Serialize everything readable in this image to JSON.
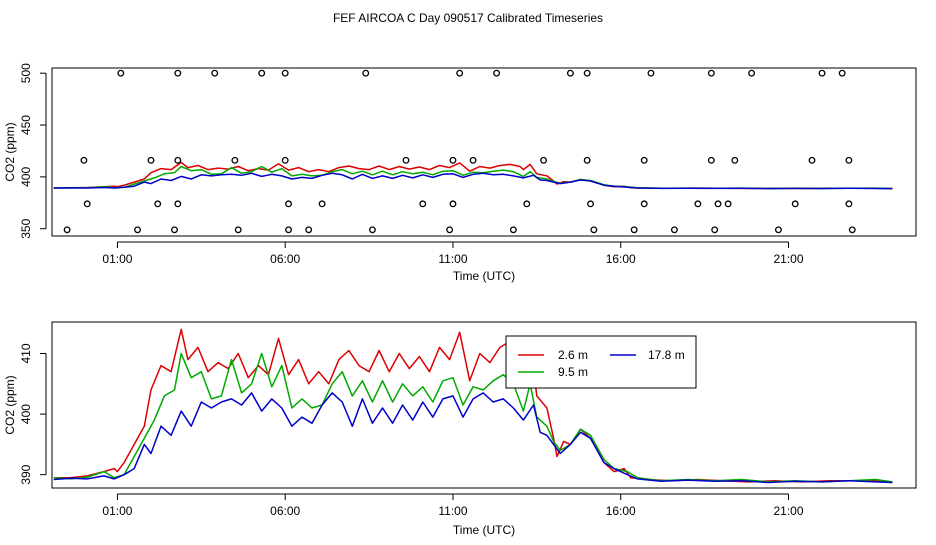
{
  "title": "FEF AIRCOA C  Day 090517  Calibrated Timeseries",
  "colors": {
    "h2_6": "#dd0000",
    "h9_5": "#00aa00",
    "h17_8": "#0000cc",
    "axis": "#000000"
  },
  "chart_data": [
    {
      "id": "top",
      "type": "line",
      "xlabel": "Time (UTC)",
      "ylabel": "CO2 (ppm)",
      "xlim": [
        -0.95,
        24.8
      ],
      "ylim": [
        343,
        505
      ],
      "xticks": [
        1,
        6,
        11,
        16,
        21
      ],
      "xtick_labels": [
        "01:00",
        "06:00",
        "11:00",
        "16:00",
        "21:00"
      ],
      "yticks": [
        350,
        400,
        450,
        500
      ],
      "ytick_labels": [
        "350",
        "400",
        "450",
        "500"
      ],
      "scatter_points": [
        [
          1.1,
          500
        ],
        [
          2.8,
          500
        ],
        [
          3.9,
          500
        ],
        [
          5.3,
          500
        ],
        [
          6.0,
          500
        ],
        [
          8.4,
          500
        ],
        [
          11.2,
          500
        ],
        [
          12.3,
          500
        ],
        [
          14.5,
          500
        ],
        [
          15.0,
          500
        ],
        [
          16.9,
          500
        ],
        [
          18.7,
          500
        ],
        [
          19.9,
          500
        ],
        [
          22.0,
          500
        ],
        [
          22.6,
          500
        ],
        [
          0.0,
          416
        ],
        [
          2.0,
          416
        ],
        [
          2.8,
          416
        ],
        [
          4.5,
          416
        ],
        [
          6.0,
          416
        ],
        [
          9.6,
          416
        ],
        [
          11.0,
          416
        ],
        [
          11.6,
          416
        ],
        [
          13.7,
          416
        ],
        [
          15.0,
          416
        ],
        [
          16.7,
          416
        ],
        [
          18.7,
          416
        ],
        [
          19.4,
          416
        ],
        [
          21.7,
          416
        ],
        [
          22.8,
          416
        ],
        [
          0.1,
          374
        ],
        [
          2.2,
          374
        ],
        [
          2.8,
          374
        ],
        [
          6.1,
          374
        ],
        [
          7.1,
          374
        ],
        [
          10.1,
          374
        ],
        [
          11.0,
          374
        ],
        [
          13.2,
          374
        ],
        [
          15.1,
          374
        ],
        [
          16.7,
          374
        ],
        [
          18.3,
          374
        ],
        [
          18.9,
          374
        ],
        [
          19.2,
          374
        ],
        [
          21.2,
          374
        ],
        [
          22.8,
          374
        ],
        [
          -0.5,
          349
        ],
        [
          1.6,
          349
        ],
        [
          2.7,
          349
        ],
        [
          4.6,
          349
        ],
        [
          6.1,
          349
        ],
        [
          6.7,
          349
        ],
        [
          8.6,
          349
        ],
        [
          10.9,
          349
        ],
        [
          12.8,
          349
        ],
        [
          15.2,
          349
        ],
        [
          16.4,
          349
        ],
        [
          17.6,
          349
        ],
        [
          18.8,
          349
        ],
        [
          20.7,
          349
        ],
        [
          22.9,
          349
        ]
      ]
    },
    {
      "id": "bottom",
      "type": "line",
      "xlabel": "Time (UTC)",
      "ylabel": "CO2 (ppm)",
      "xlim": [
        -0.95,
        24.8
      ],
      "ylim": [
        387.8,
        415.2
      ],
      "xticks": [
        1,
        6,
        11,
        16,
        21
      ],
      "xtick_labels": [
        "01:00",
        "06:00",
        "11:00",
        "16:00",
        "21:00"
      ],
      "yticks": [
        390,
        400,
        410
      ],
      "ytick_labels": [
        "390",
        "400",
        "410"
      ],
      "legend": {
        "position": "top-right-center",
        "entries": [
          {
            "label": "2.6 m",
            "color": "#dd0000"
          },
          {
            "label": "17.8 m",
            "color": "#0000cc"
          },
          {
            "label": "9.5 m",
            "color": "#00aa00"
          }
        ]
      }
    }
  ],
  "series": [
    {
      "name": "2.6 m",
      "color": "#dd0000",
      "points": [
        [
          -0.9,
          389.5
        ],
        [
          -0.4,
          389.5
        ],
        [
          0.1,
          389.8
        ],
        [
          0.6,
          390.5
        ],
        [
          0.9,
          391.0
        ],
        [
          1.0,
          390.5
        ],
        [
          1.2,
          392.0
        ],
        [
          1.5,
          395.0
        ],
        [
          1.8,
          398.0
        ],
        [
          2.0,
          404.0
        ],
        [
          2.3,
          408.0
        ],
        [
          2.6,
          407.0
        ],
        [
          2.9,
          414.0
        ],
        [
          3.1,
          409.0
        ],
        [
          3.4,
          411.0
        ],
        [
          3.7,
          407.0
        ],
        [
          4.0,
          408.5
        ],
        [
          4.3,
          407.5
        ],
        [
          4.6,
          410.0
        ],
        [
          4.9,
          406.0
        ],
        [
          5.2,
          408.0
        ],
        [
          5.5,
          406.5
        ],
        [
          5.8,
          412.5
        ],
        [
          6.1,
          406.5
        ],
        [
          6.4,
          409.0
        ],
        [
          6.7,
          405.0
        ],
        [
          7.0,
          407.0
        ],
        [
          7.3,
          405.0
        ],
        [
          7.6,
          409.0
        ],
        [
          7.9,
          410.5
        ],
        [
          8.2,
          408.0
        ],
        [
          8.5,
          407.0
        ],
        [
          8.8,
          410.5
        ],
        [
          9.1,
          407.0
        ],
        [
          9.4,
          410.0
        ],
        [
          9.7,
          407.5
        ],
        [
          10.0,
          409.5
        ],
        [
          10.3,
          407.0
        ],
        [
          10.6,
          411.0
        ],
        [
          10.9,
          409.0
        ],
        [
          11.2,
          413.5
        ],
        [
          11.5,
          405.5
        ],
        [
          11.8,
          410.0
        ],
        [
          12.1,
          408.5
        ],
        [
          12.4,
          411.0
        ],
        [
          12.7,
          412.0
        ],
        [
          13.0,
          410.0
        ],
        [
          13.1,
          407.0
        ],
        [
          13.3,
          412.0
        ],
        [
          13.5,
          403.0
        ],
        [
          13.8,
          401.0
        ],
        [
          14.0,
          396.0
        ],
        [
          14.1,
          393.0
        ],
        [
          14.3,
          395.5
        ],
        [
          14.5,
          395.0
        ],
        [
          14.8,
          397.5
        ],
        [
          15.1,
          396.0
        ],
        [
          15.5,
          392.0
        ],
        [
          15.8,
          390.5
        ],
        [
          16.1,
          391.0
        ],
        [
          16.3,
          389.5
        ],
        [
          16.8,
          389.2
        ],
        [
          17.5,
          389.0
        ],
        [
          18.3,
          389.2
        ],
        [
          19.0,
          389.0
        ],
        [
          19.8,
          388.8
        ],
        [
          20.6,
          389.0
        ],
        [
          21.4,
          388.8
        ],
        [
          22.2,
          389.0
        ],
        [
          23.0,
          389.0
        ],
        [
          23.6,
          389.0
        ],
        [
          24.1,
          388.8
        ]
      ]
    },
    {
      "name": "9.5 m",
      "color": "#00aa00",
      "points": [
        [
          -0.9,
          389.5
        ],
        [
          -0.4,
          389.3
        ],
        [
          0.1,
          389.6
        ],
        [
          0.6,
          390.5
        ],
        [
          0.9,
          389.5
        ],
        [
          1.2,
          390.0
        ],
        [
          1.5,
          393.0
        ],
        [
          1.8,
          396.0
        ],
        [
          2.1,
          399.0
        ],
        [
          2.4,
          403.0
        ],
        [
          2.7,
          404.0
        ],
        [
          2.9,
          410.0
        ],
        [
          3.2,
          406.0
        ],
        [
          3.5,
          407.0
        ],
        [
          3.8,
          402.5
        ],
        [
          4.1,
          403.0
        ],
        [
          4.4,
          409.0
        ],
        [
          4.7,
          403.5
        ],
        [
          5.0,
          405.0
        ],
        [
          5.3,
          410.0
        ],
        [
          5.6,
          404.5
        ],
        [
          5.9,
          408.0
        ],
        [
          6.2,
          401.0
        ],
        [
          6.5,
          402.5
        ],
        [
          6.8,
          401.0
        ],
        [
          7.1,
          401.5
        ],
        [
          7.4,
          405.0
        ],
        [
          7.7,
          407.0
        ],
        [
          8.0,
          403.0
        ],
        [
          8.3,
          405.5
        ],
        [
          8.6,
          402.0
        ],
        [
          8.9,
          405.5
        ],
        [
          9.2,
          402.0
        ],
        [
          9.5,
          405.0
        ],
        [
          9.8,
          403.0
        ],
        [
          10.1,
          404.5
        ],
        [
          10.4,
          402.0
        ],
        [
          10.7,
          405.5
        ],
        [
          11.0,
          406.0
        ],
        [
          11.3,
          401.5
        ],
        [
          11.6,
          404.5
        ],
        [
          11.9,
          404.0
        ],
        [
          12.2,
          405.5
        ],
        [
          12.5,
          406.5
        ],
        [
          12.8,
          405.0
        ],
        [
          13.1,
          400.5
        ],
        [
          13.3,
          405.0
        ],
        [
          13.5,
          399.5
        ],
        [
          13.8,
          398.0
        ],
        [
          14.0,
          395.5
        ],
        [
          14.2,
          394.0
        ],
        [
          14.5,
          395.0
        ],
        [
          14.8,
          397.5
        ],
        [
          15.1,
          396.5
        ],
        [
          15.5,
          392.5
        ],
        [
          15.8,
          391.0
        ],
        [
          16.2,
          390.5
        ],
        [
          16.5,
          389.5
        ],
        [
          17.2,
          389.0
        ],
        [
          18.0,
          389.2
        ],
        [
          18.8,
          389.0
        ],
        [
          19.6,
          389.2
        ],
        [
          20.4,
          388.8
        ],
        [
          21.2,
          389.0
        ],
        [
          22.0,
          388.8
        ],
        [
          22.8,
          389.0
        ],
        [
          23.6,
          389.2
        ],
        [
          24.1,
          388.8
        ]
      ]
    },
    {
      "name": "17.8 m",
      "color": "#0000cc",
      "points": [
        [
          -0.9,
          389.2
        ],
        [
          -0.4,
          389.4
        ],
        [
          0.1,
          389.3
        ],
        [
          0.6,
          389.8
        ],
        [
          0.9,
          389.3
        ],
        [
          1.2,
          390.0
        ],
        [
          1.5,
          391.0
        ],
        [
          1.8,
          395.0
        ],
        [
          2.0,
          393.5
        ],
        [
          2.3,
          398.0
        ],
        [
          2.6,
          396.5
        ],
        [
          2.9,
          400.5
        ],
        [
          3.2,
          398.0
        ],
        [
          3.5,
          402.0
        ],
        [
          3.8,
          401.0
        ],
        [
          4.1,
          402.0
        ],
        [
          4.4,
          402.5
        ],
        [
          4.7,
          401.5
        ],
        [
          5.0,
          403.5
        ],
        [
          5.3,
          400.5
        ],
        [
          5.6,
          402.5
        ],
        [
          5.9,
          401.0
        ],
        [
          6.2,
          398.0
        ],
        [
          6.5,
          399.5
        ],
        [
          6.8,
          398.5
        ],
        [
          7.1,
          401.5
        ],
        [
          7.4,
          403.5
        ],
        [
          7.7,
          402.0
        ],
        [
          8.0,
          398.0
        ],
        [
          8.3,
          402.5
        ],
        [
          8.6,
          398.5
        ],
        [
          8.9,
          401.0
        ],
        [
          9.2,
          398.5
        ],
        [
          9.5,
          401.5
        ],
        [
          9.8,
          399.0
        ],
        [
          10.1,
          402.0
        ],
        [
          10.4,
          399.5
        ],
        [
          10.7,
          402.5
        ],
        [
          11.0,
          403.0
        ],
        [
          11.3,
          399.5
        ],
        [
          11.6,
          402.5
        ],
        [
          11.9,
          403.5
        ],
        [
          12.2,
          402.0
        ],
        [
          12.5,
          402.5
        ],
        [
          12.8,
          401.0
        ],
        [
          13.1,
          399.0
        ],
        [
          13.4,
          401.5
        ],
        [
          13.6,
          397.0
        ],
        [
          13.8,
          396.5
        ],
        [
          14.0,
          395.0
        ],
        [
          14.2,
          393.5
        ],
        [
          14.5,
          395.0
        ],
        [
          14.8,
          397.0
        ],
        [
          15.1,
          396.0
        ],
        [
          15.5,
          392.0
        ],
        [
          15.8,
          391.0
        ],
        [
          16.2,
          390.0
        ],
        [
          16.5,
          389.3
        ],
        [
          17.2,
          388.9
        ],
        [
          18.0,
          389.1
        ],
        [
          18.8,
          388.9
        ],
        [
          19.6,
          389.0
        ],
        [
          20.4,
          388.7
        ],
        [
          21.2,
          388.9
        ],
        [
          22.0,
          388.8
        ],
        [
          22.8,
          389.0
        ],
        [
          23.6,
          388.8
        ],
        [
          24.1,
          388.7
        ]
      ]
    }
  ]
}
